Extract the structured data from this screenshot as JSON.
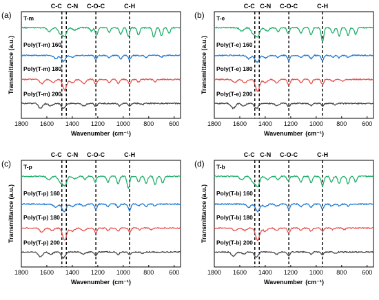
{
  "colors": {
    "green": "#1fae6a",
    "blue": "#1e78d2",
    "red": "#e8514e",
    "black": "#444444"
  },
  "chart_data": [
    {
      "type": "line",
      "panel_label": "(a)",
      "xlabel": "Wavenumber",
      "xlabel_unit": "(cm⁻¹)",
      "ylabel": "Transmittance (a.u.)",
      "xlim": [
        1800,
        550
      ],
      "xticks": [
        1800,
        1600,
        1400,
        1200,
        1000,
        800,
        600
      ],
      "x_reversed": true,
      "grid": false,
      "band_lines": [
        {
          "label": "C-C",
          "x": 1482
        },
        {
          "label": "C-N",
          "x": 1447
        },
        {
          "label": "C-O-C",
          "x": 1215
        },
        {
          "label": "C-H",
          "x": 950
        }
      ],
      "series": [
        {
          "name": "T-m",
          "color": "green",
          "offset": 3,
          "peaks": [
            [
              1580,
              0.25
            ],
            [
              1495,
              0.35
            ],
            [
              1460,
              0.5
            ],
            [
              1380,
              0.15
            ],
            [
              1250,
              0.2
            ],
            [
              1210,
              0.45
            ],
            [
              1110,
              0.3
            ],
            [
              1020,
              0.4
            ],
            [
              960,
              0.55
            ],
            [
              880,
              0.45
            ],
            [
              760,
              0.6
            ],
            [
              700,
              0.5
            ],
            [
              640,
              0.35
            ]
          ]
        },
        {
          "name": "Poly(T-m) 160",
          "color": "blue",
          "offset": 2,
          "peaks": [
            [
              1530,
              0.2
            ],
            [
              1470,
              0.35
            ],
            [
              1400,
              0.12
            ],
            [
              1215,
              0.25
            ],
            [
              1110,
              0.15
            ],
            [
              1020,
              0.2
            ],
            [
              950,
              0.25
            ],
            [
              820,
              0.12
            ],
            [
              700,
              0.1
            ]
          ]
        },
        {
          "name": "Poly(T-m) 180",
          "color": "red",
          "offset": 1,
          "peaks": [
            [
              1640,
              0.25
            ],
            [
              1550,
              0.2
            ],
            [
              1460,
              0.65
            ],
            [
              1400,
              0.2
            ],
            [
              1310,
              0.25
            ],
            [
              1215,
              0.3
            ],
            [
              1110,
              0.2
            ],
            [
              1040,
              0.25
            ],
            [
              950,
              0.3
            ],
            [
              880,
              0.15
            ],
            [
              750,
              0.15
            ]
          ]
        },
        {
          "name": "Poly(T-m) 200",
          "color": "black",
          "offset": 0,
          "peaks": [
            [
              1650,
              0.3
            ],
            [
              1570,
              0.15
            ],
            [
              1470,
              0.3
            ],
            [
              1310,
              0.15
            ],
            [
              1215,
              0.2
            ],
            [
              1030,
              0.15
            ],
            [
              950,
              0.15
            ],
            [
              850,
              0.08
            ]
          ]
        }
      ]
    },
    {
      "type": "line",
      "panel_label": "(b)",
      "xlabel": "Wavenumber",
      "xlabel_unit": "(cm⁻¹)",
      "ylabel": "Transmittance (a.u.)",
      "xlim": [
        1800,
        550
      ],
      "xticks": [
        1800,
        1600,
        1400,
        1200,
        1000,
        800,
        600
      ],
      "x_reversed": true,
      "grid": false,
      "band_lines": [
        {
          "label": "C-C",
          "x": 1482
        },
        {
          "label": "C-N",
          "x": 1447
        },
        {
          "label": "C-O-C",
          "x": 1215
        },
        {
          "label": "C-H",
          "x": 950
        }
      ],
      "series": [
        {
          "name": "T-e",
          "color": "green",
          "offset": 3,
          "peaks": [
            [
              1585,
              0.2
            ],
            [
              1495,
              0.35
            ],
            [
              1460,
              0.55
            ],
            [
              1385,
              0.2
            ],
            [
              1300,
              0.25
            ],
            [
              1220,
              0.35
            ],
            [
              1120,
              0.35
            ],
            [
              1040,
              0.45
            ],
            [
              950,
              0.85
            ],
            [
              870,
              0.35
            ],
            [
              820,
              0.5
            ],
            [
              750,
              0.45
            ],
            [
              690,
              0.4
            ]
          ]
        },
        {
          "name": "Poly(T-e) 160",
          "color": "blue",
          "offset": 2,
          "peaks": [
            [
              1530,
              0.2
            ],
            [
              1465,
              0.4
            ],
            [
              1400,
              0.15
            ],
            [
              1300,
              0.12
            ],
            [
              1215,
              0.3
            ],
            [
              1120,
              0.15
            ],
            [
              1040,
              0.2
            ],
            [
              950,
              0.3
            ],
            [
              870,
              0.12
            ],
            [
              820,
              0.15
            ],
            [
              750,
              0.12
            ]
          ]
        },
        {
          "name": "Poly(T-e) 180",
          "color": "red",
          "offset": 1,
          "peaks": [
            [
              1640,
              0.2
            ],
            [
              1560,
              0.2
            ],
            [
              1460,
              0.7
            ],
            [
              1400,
              0.2
            ],
            [
              1310,
              0.2
            ],
            [
              1215,
              0.35
            ],
            [
              1120,
              0.2
            ],
            [
              1040,
              0.25
            ],
            [
              950,
              0.3
            ],
            [
              870,
              0.12
            ],
            [
              790,
              0.12
            ]
          ]
        },
        {
          "name": "Poly(T-e) 200",
          "color": "black",
          "offset": 0,
          "peaks": [
            [
              1650,
              0.3
            ],
            [
              1570,
              0.15
            ],
            [
              1470,
              0.3
            ],
            [
              1310,
              0.12
            ],
            [
              1215,
              0.2
            ],
            [
              1040,
              0.15
            ],
            [
              950,
              0.15
            ],
            [
              850,
              0.08
            ]
          ]
        }
      ]
    },
    {
      "type": "line",
      "panel_label": "(c)",
      "xlabel": "Wavenumber",
      "xlabel_unit": "(cm⁻¹)",
      "ylabel": "Transmittance (a.u.)",
      "xlim": [
        1800,
        550
      ],
      "xticks": [
        1800,
        1600,
        1400,
        1200,
        1000,
        800,
        600
      ],
      "x_reversed": true,
      "grid": false,
      "band_lines": [
        {
          "label": "C-C",
          "x": 1482
        },
        {
          "label": "C-N",
          "x": 1447
        },
        {
          "label": "C-O-C",
          "x": 1215
        },
        {
          "label": "C-H",
          "x": 950
        }
      ],
      "series": [
        {
          "name": "T-p",
          "color": "green",
          "offset": 3,
          "peaks": [
            [
              1585,
              0.2
            ],
            [
              1495,
              0.35
            ],
            [
              1460,
              0.55
            ],
            [
              1380,
              0.15
            ],
            [
              1300,
              0.2
            ],
            [
              1220,
              0.35
            ],
            [
              1120,
              0.35
            ],
            [
              1040,
              0.45
            ],
            [
              960,
              0.75
            ],
            [
              880,
              0.35
            ],
            [
              820,
              0.45
            ],
            [
              750,
              0.5
            ],
            [
              690,
              0.4
            ]
          ]
        },
        {
          "name": "Poly(T-p) 160",
          "color": "blue",
          "offset": 2,
          "peaks": [
            [
              1530,
              0.2
            ],
            [
              1465,
              0.45
            ],
            [
              1400,
              0.15
            ],
            [
              1310,
              0.12
            ],
            [
              1215,
              0.3
            ],
            [
              1120,
              0.15
            ],
            [
              1040,
              0.2
            ],
            [
              950,
              0.4
            ],
            [
              880,
              0.12
            ],
            [
              820,
              0.15
            ],
            [
              750,
              0.12
            ]
          ]
        },
        {
          "name": "Poly(T-p) 180",
          "color": "red",
          "offset": 1,
          "peaks": [
            [
              1640,
              0.25
            ],
            [
              1560,
              0.15
            ],
            [
              1460,
              0.75
            ],
            [
              1400,
              0.2
            ],
            [
              1310,
              0.15
            ],
            [
              1215,
              0.3
            ],
            [
              1120,
              0.15
            ],
            [
              1040,
              0.2
            ],
            [
              950,
              0.25
            ],
            [
              870,
              0.1
            ],
            [
              780,
              0.1
            ]
          ]
        },
        {
          "name": "Poly(T-p) 200",
          "color": "black",
          "offset": 0,
          "peaks": [
            [
              1650,
              0.3
            ],
            [
              1570,
              0.15
            ],
            [
              1470,
              0.35
            ],
            [
              1310,
              0.12
            ],
            [
              1215,
              0.2
            ],
            [
              1040,
              0.15
            ],
            [
              950,
              0.15
            ],
            [
              850,
              0.08
            ]
          ]
        }
      ]
    },
    {
      "type": "line",
      "panel_label": "(d)",
      "xlabel": "Wavenumber",
      "xlabel_unit": "(cm⁻¹)",
      "ylabel": "Transmittance (a.u.)",
      "xlim": [
        1800,
        550
      ],
      "xticks": [
        1800,
        1600,
        1400,
        1200,
        1000,
        800,
        600
      ],
      "x_reversed": true,
      "grid": false,
      "band_lines": [
        {
          "label": "C-C",
          "x": 1482
        },
        {
          "label": "C-N",
          "x": 1447
        },
        {
          "label": "C-O-C",
          "x": 1215
        },
        {
          "label": "C-H",
          "x": 950
        }
      ],
      "series": [
        {
          "name": "T-b",
          "color": "green",
          "offset": 3,
          "peaks": [
            [
              1585,
              0.2
            ],
            [
              1495,
              0.35
            ],
            [
              1460,
              0.6
            ],
            [
              1380,
              0.2
            ],
            [
              1300,
              0.25
            ],
            [
              1220,
              0.3
            ],
            [
              1120,
              0.35
            ],
            [
              1040,
              0.4
            ],
            [
              950,
              0.6
            ],
            [
              880,
              0.35
            ],
            [
              820,
              0.45
            ],
            [
              750,
              0.45
            ],
            [
              690,
              0.35
            ]
          ]
        },
        {
          "name": "Poly(T-b) 160",
          "color": "blue",
          "offset": 2,
          "peaks": [
            [
              1530,
              0.2
            ],
            [
              1460,
              0.45
            ],
            [
              1400,
              0.15
            ],
            [
              1310,
              0.12
            ],
            [
              1215,
              0.3
            ],
            [
              1120,
              0.15
            ],
            [
              1040,
              0.2
            ],
            [
              950,
              0.3
            ],
            [
              880,
              0.12
            ],
            [
              820,
              0.12
            ],
            [
              750,
              0.12
            ]
          ]
        },
        {
          "name": "Poly(T-b) 180",
          "color": "red",
          "offset": 1,
          "peaks": [
            [
              1640,
              0.15
            ],
            [
              1560,
              0.15
            ],
            [
              1460,
              0.75
            ],
            [
              1400,
              0.2
            ],
            [
              1310,
              0.12
            ],
            [
              1215,
              0.3
            ],
            [
              1120,
              0.15
            ],
            [
              1040,
              0.2
            ],
            [
              950,
              0.2
            ],
            [
              870,
              0.1
            ],
            [
              780,
              0.1
            ]
          ]
        },
        {
          "name": "Poly(T-b) 200",
          "color": "black",
          "offset": 0,
          "peaks": [
            [
              1650,
              0.25
            ],
            [
              1570,
              0.12
            ],
            [
              1470,
              0.3
            ],
            [
              1310,
              0.12
            ],
            [
              1215,
              0.2
            ],
            [
              1040,
              0.12
            ],
            [
              950,
              0.15
            ],
            [
              850,
              0.08
            ]
          ]
        }
      ]
    }
  ]
}
